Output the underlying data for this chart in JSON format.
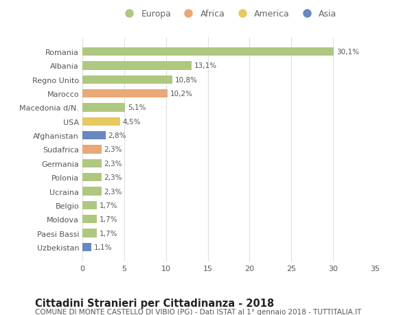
{
  "countries": [
    "Romania",
    "Albania",
    "Regno Unito",
    "Marocco",
    "Macedonia d/N.",
    "USA",
    "Afghanistan",
    "Sudafrica",
    "Germania",
    "Polonia",
    "Ucraina",
    "Belgio",
    "Moldova",
    "Paesi Bassi",
    "Uzbekistan"
  ],
  "values": [
    30.1,
    13.1,
    10.8,
    10.2,
    5.1,
    4.5,
    2.8,
    2.3,
    2.3,
    2.3,
    2.3,
    1.7,
    1.7,
    1.7,
    1.1
  ],
  "labels": [
    "30,1%",
    "13,1%",
    "10,8%",
    "10,2%",
    "5,1%",
    "4,5%",
    "2,8%",
    "2,3%",
    "2,3%",
    "2,3%",
    "2,3%",
    "1,7%",
    "1,7%",
    "1,7%",
    "1,1%"
  ],
  "continents": [
    "Europa",
    "Europa",
    "Europa",
    "Africa",
    "Europa",
    "America",
    "Asia",
    "Africa",
    "Europa",
    "Europa",
    "Europa",
    "Europa",
    "Europa",
    "Europa",
    "Asia"
  ],
  "colors": {
    "Europa": "#aec880",
    "Africa": "#e8a878",
    "America": "#e8c860",
    "Asia": "#6888c0"
  },
  "xlim": [
    0,
    35
  ],
  "xticks": [
    0,
    5,
    10,
    15,
    20,
    25,
    30,
    35
  ],
  "title": "Cittadini Stranieri per Cittadinanza - 2018",
  "subtitle": "COMUNE DI MONTE CASTELLO DI VIBIO (PG) - Dati ISTAT al 1° gennaio 2018 - TUTTITALIA.IT",
  "bg_color": "#ffffff",
  "grid_color": "#e0e0e0",
  "bar_height": 0.6,
  "title_fontsize": 10.5,
  "subtitle_fontsize": 7.5,
  "label_fontsize": 7.5,
  "tick_fontsize": 8,
  "legend_fontsize": 9
}
